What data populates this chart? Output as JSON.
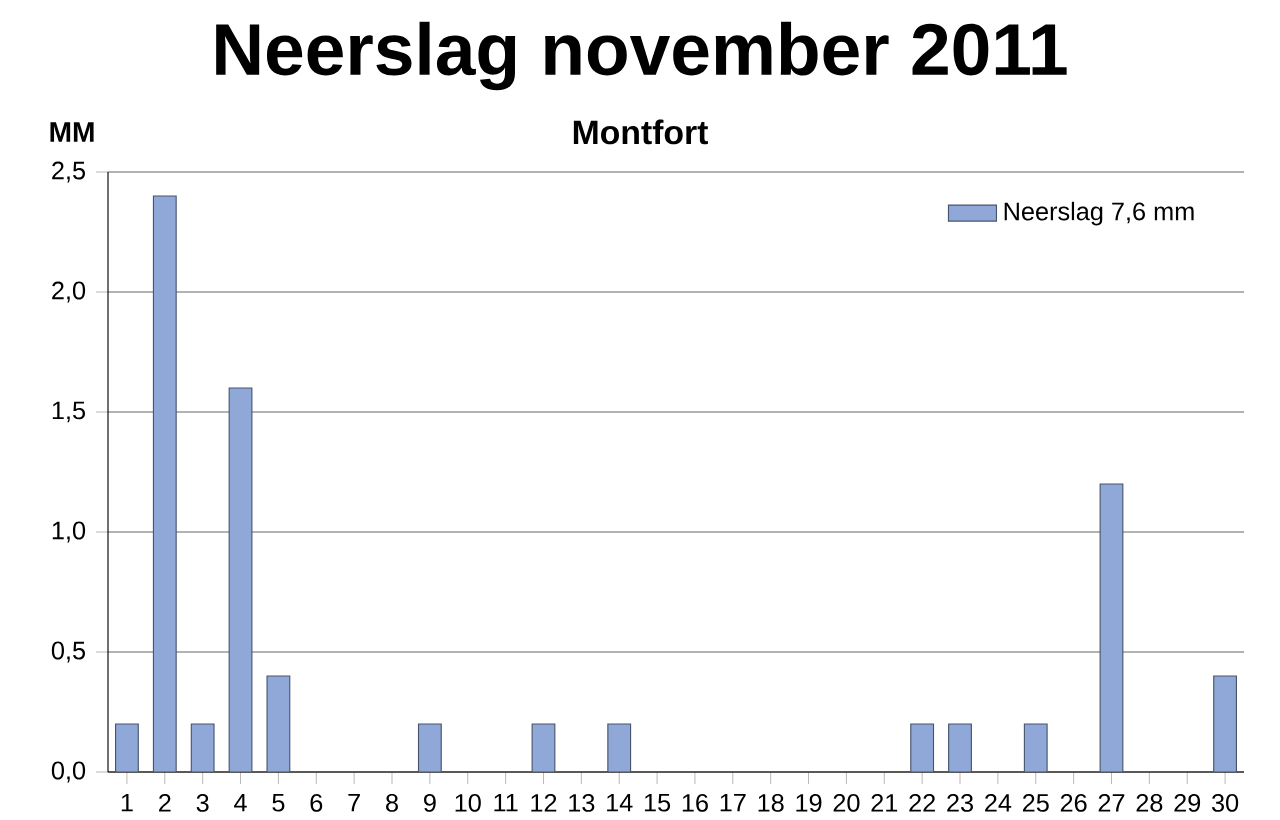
{
  "chart_data": {
    "type": "bar",
    "title": "Neerslag november 2011",
    "subtitle": "Montfort",
    "ylabel": "MM",
    "categories": [
      "1",
      "2",
      "3",
      "4",
      "5",
      "6",
      "7",
      "8",
      "9",
      "10",
      "11",
      "12",
      "13",
      "14",
      "15",
      "16",
      "17",
      "18",
      "19",
      "20",
      "21",
      "22",
      "23",
      "24",
      "25",
      "26",
      "27",
      "28",
      "29",
      "30"
    ],
    "series": [
      {
        "name": "Neerslag 7,6 mm",
        "color": "#8fa8d8",
        "values": [
          0.2,
          2.4,
          0.2,
          1.6,
          0.4,
          null,
          null,
          null,
          0.2,
          null,
          null,
          0.2,
          null,
          0.2,
          null,
          null,
          null,
          null,
          null,
          null,
          null,
          0.2,
          0.2,
          null,
          0.2,
          null,
          1.2,
          null,
          null,
          0.4
        ]
      }
    ],
    "ylim": [
      0,
      2.5
    ],
    "yticks": [
      {
        "value": 0,
        "label": "0,0"
      },
      {
        "value": 0.5,
        "label": "0,5"
      },
      {
        "value": 1,
        "label": "1,0"
      },
      {
        "value": 1.5,
        "label": "1,5"
      },
      {
        "value": 2,
        "label": "2,0"
      },
      {
        "value": 2.5,
        "label": "2,5"
      }
    ],
    "grid": "y",
    "legend": "top right"
  }
}
